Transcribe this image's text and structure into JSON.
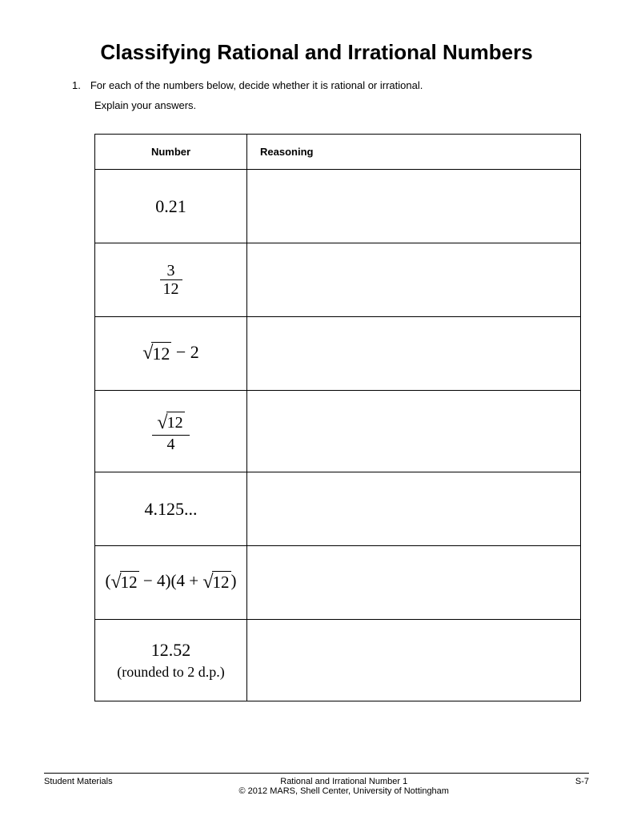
{
  "title": "Classifying Rational and Irrational Numbers",
  "question": {
    "number": "1.",
    "text": "For each of the numbers below, decide whether it is rational or irrational.",
    "sub": "Explain your answers."
  },
  "table": {
    "headers": {
      "number": "Number",
      "reasoning": "Reasoning"
    },
    "rows": [
      {
        "type": "plain",
        "value": "0.21"
      },
      {
        "type": "fraction",
        "num": "3",
        "den": "12"
      },
      {
        "type": "sqrt_minus",
        "arg": "12",
        "minus": "2"
      },
      {
        "type": "sqrt_over",
        "arg": "12",
        "den": "4"
      },
      {
        "type": "plain",
        "value": "4.125..."
      },
      {
        "type": "product",
        "arg1": "12",
        "minus": "4",
        "plus": "4",
        "arg2": "12"
      },
      {
        "type": "rounded",
        "value": "12.52",
        "note": "(rounded to 2 d.p.)"
      }
    ]
  },
  "footer": {
    "left": "Student Materials",
    "center1": "Rational and Irrational Number 1",
    "center2": "© 2012 MARS, Shell Center, University of Nottingham",
    "right": "S-7"
  }
}
